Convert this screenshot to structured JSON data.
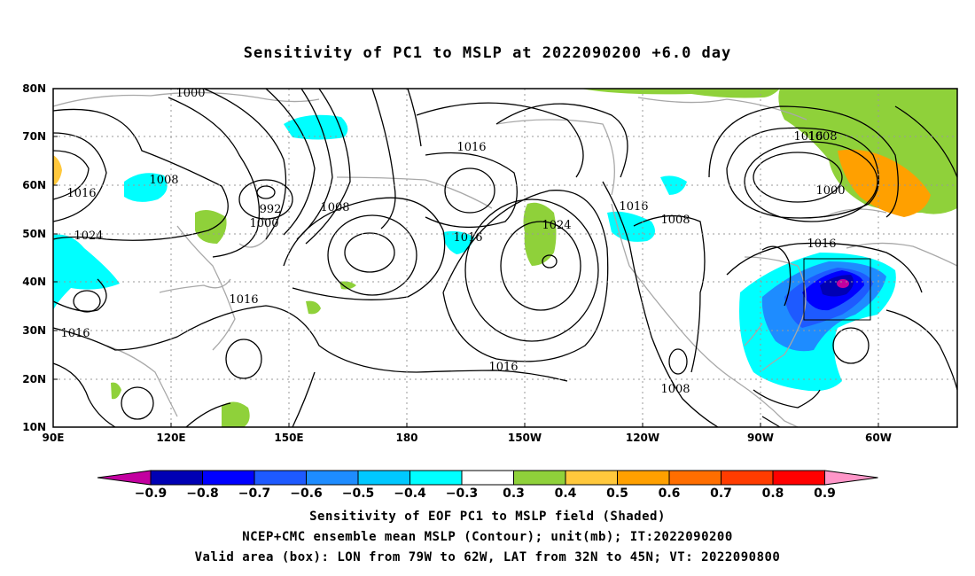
{
  "title": "Sensitivity of PC1 to MSLP at 2022090200 +6.0 day",
  "axes": {
    "lat_labels": [
      "80N",
      "70N",
      "60N",
      "50N",
      "40N",
      "30N",
      "20N",
      "10N"
    ],
    "lon_labels": [
      "90E",
      "120E",
      "150E",
      "180",
      "150W",
      "120W",
      "90W",
      "60W"
    ]
  },
  "contour_labels": [
    "1000",
    "1008",
    "1016",
    "1024",
    "992",
    "1000",
    "1008",
    "1016",
    "1016",
    "1016",
    "1016",
    "1024",
    "1016",
    "1008",
    "1016",
    "1008",
    "1000",
    "1016",
    "1016",
    "1008"
  ],
  "colorbar": {
    "labels": [
      "-0.9",
      "-0.8",
      "-0.7",
      "-0.6",
      "-0.5",
      "-0.4",
      "-0.3",
      "0.3",
      "0.4",
      "0.5",
      "0.6",
      "0.7",
      "0.8",
      "0.9"
    ],
    "colors": [
      "#c300a0",
      "#0000b4",
      "#0000ff",
      "#1e5aff",
      "#1e8cff",
      "#00c8ff",
      "#00ffff",
      "#ffffff",
      "#8fd13a",
      "#ffc83c",
      "#ffa000",
      "#ff6e00",
      "#ff3c00",
      "#ff0000",
      "#ff96c8"
    ]
  },
  "captions": [
    "Sensitivity of EOF PC1 to MSLP field (Shaded)",
    "NCEP+CMC ensemble mean MSLP (Contour); unit(mb); IT:2022090200",
    "Valid area (box): LON from 79W to 62W, LAT from 32N to 45N; VT: 2022090800"
  ]
}
